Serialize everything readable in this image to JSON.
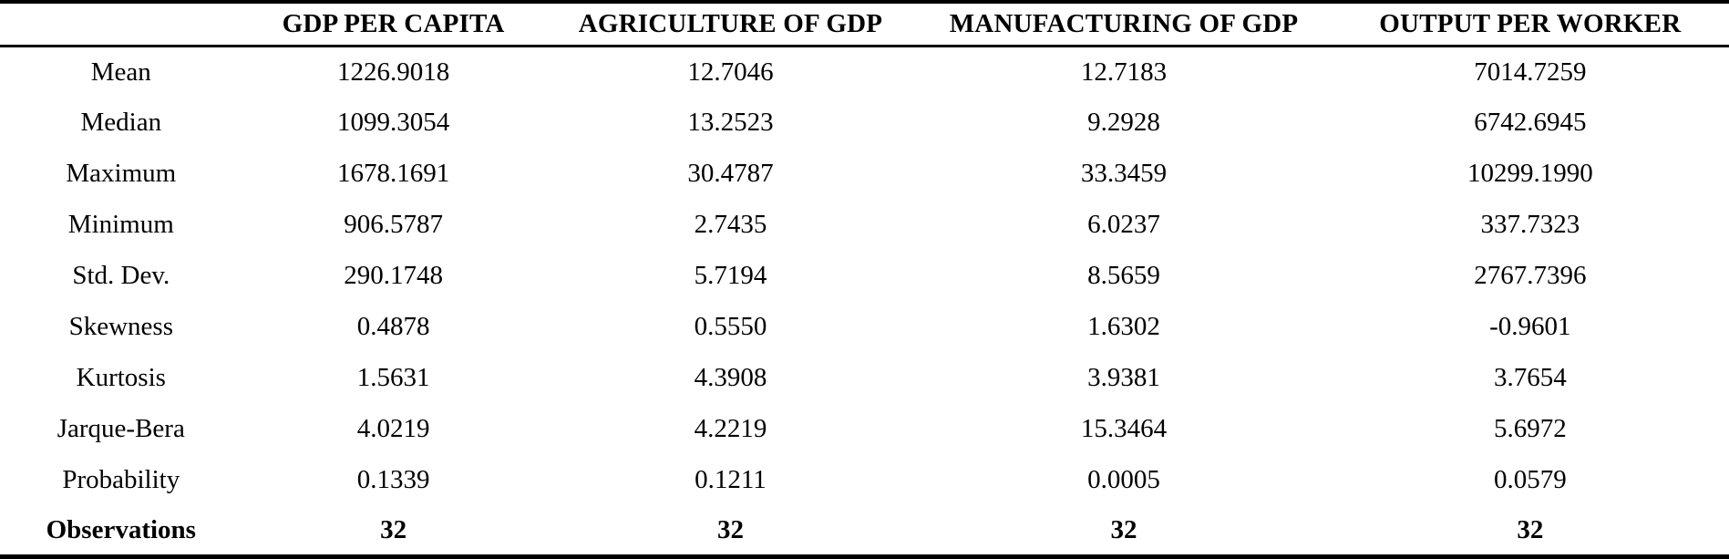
{
  "table": {
    "columns": [
      "",
      "GDP PER CAPITA",
      "AGRICULTURE OF GDP",
      "MANUFACTURING OF GDP",
      "OUTPUT PER WORKER"
    ],
    "rows": [
      {
        "label": "Mean",
        "values": [
          "1226.9018",
          "12.7046",
          "12.7183",
          "7014.7259"
        ],
        "bold": false
      },
      {
        "label": "Median",
        "values": [
          "1099.3054",
          "13.2523",
          "9.2928",
          "6742.6945"
        ],
        "bold": false
      },
      {
        "label": "Maximum",
        "values": [
          "1678.1691",
          "30.4787",
          "33.3459",
          "10299.1990"
        ],
        "bold": false
      },
      {
        "label": "Minimum",
        "values": [
          "906.5787",
          "2.7435",
          "6.0237",
          "337.7323"
        ],
        "bold": false
      },
      {
        "label": "Std. Dev.",
        "values": [
          "290.1748",
          "5.7194",
          "8.5659",
          "2767.7396"
        ],
        "bold": false
      },
      {
        "label": "Skewness",
        "values": [
          "0.4878",
          "0.5550",
          "1.6302",
          "-0.9601"
        ],
        "bold": false
      },
      {
        "label": "Kurtosis",
        "values": [
          "1.5631",
          "4.3908",
          "3.9381",
          "3.7654"
        ],
        "bold": false
      },
      {
        "label": "Jarque-Bera",
        "values": [
          "4.0219",
          "4.2219",
          "15.3464",
          "5.6972"
        ],
        "bold": false
      },
      {
        "label": "Probability",
        "values": [
          "0.1339",
          "0.1211",
          "0.0005",
          "0.0579"
        ],
        "bold": false
      },
      {
        "label": "Observations",
        "values": [
          "32",
          "32",
          "32",
          "32"
        ],
        "bold": true
      }
    ]
  },
  "colors": {
    "text": "#000000",
    "background": "#ffffff",
    "rule": "#000000"
  }
}
